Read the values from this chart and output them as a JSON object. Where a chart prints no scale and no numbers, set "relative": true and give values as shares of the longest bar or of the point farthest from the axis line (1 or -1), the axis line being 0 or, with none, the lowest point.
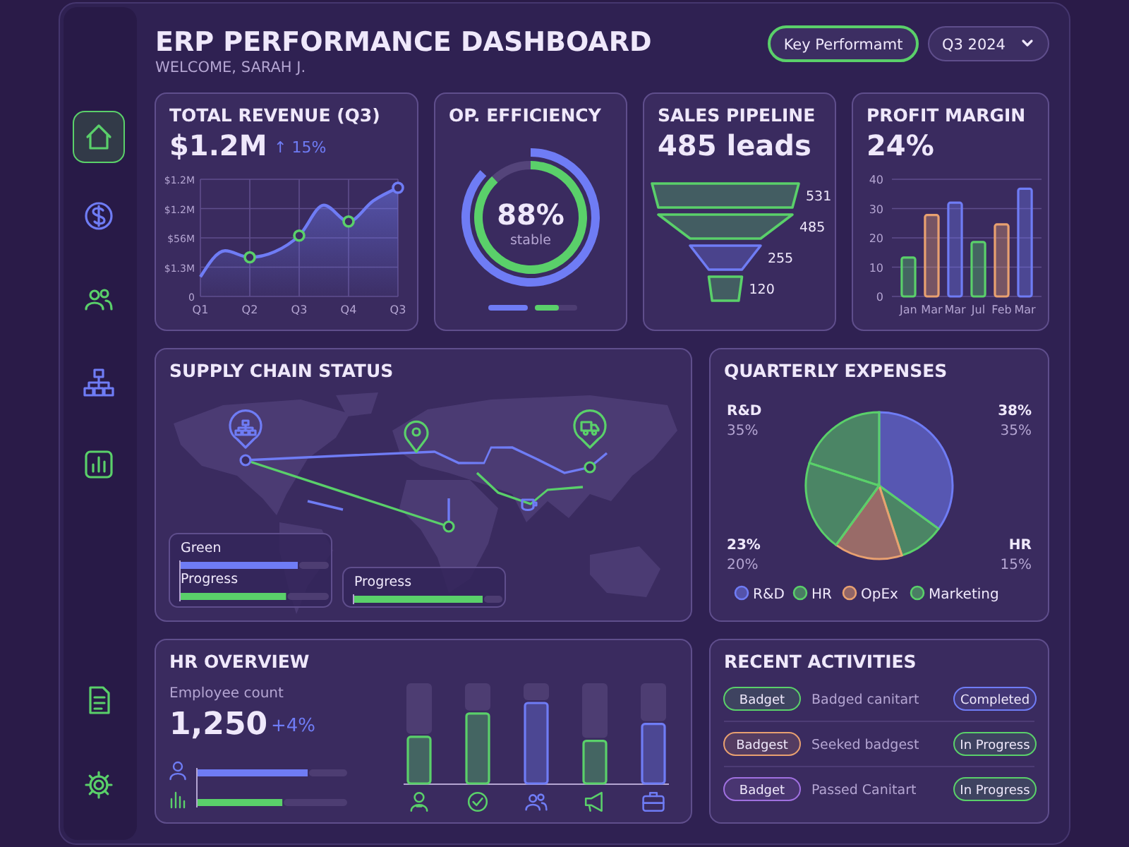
{
  "chart_data": [
    {
      "type": "other",
      "title": "ERP PERFORMANCE DASHBOARD",
      "subtitle": "WELCOME, SARAH J.",
      "annotations": [
        "Key Performamt",
        "Q3 2024"
      ]
    },
    {
      "type": "area",
      "relative": true,
      "title": "TOTAL REVENUE (Q3)",
      "subtitle": "$1.2M",
      "annotations": [
        "↑ 15%",
        "$1.2M",
        "$1.2M",
        "$56M",
        "$1.3M",
        "0"
      ],
      "categories": [
        "Q1",
        null,
        "Q2",
        null,
        "Q3",
        null,
        "Q4",
        null,
        "Q3"
      ],
      "grid": true,
      "series": [
        {
          "type": "area",
          "color": "#6f7cf5",
          "values": [
            0.18,
            0.42,
            0.36,
            0.41,
            0.56,
            0.84,
            0.69,
            0.88,
            1
          ]
        },
        {
          "type": "scatter",
          "marker": "circle",
          "values": [
            null,
            null,
            0.36,
            null,
            0.56,
            null,
            0.69,
            null,
            1
          ],
          "colors": [
            null,
            null,
            "#5ad06a",
            null,
            "#5ad06a",
            null,
            "#5ad06a",
            null,
            "#6f7cf5"
          ]
        }
      ]
    },
    {
      "type": "donut",
      "title": "OP. EFFICIENCY",
      "annotations": [
        "stable"
      ],
      "values": [
        88,
        12
      ],
      "colors": [
        "#5ad06a",
        "#54447a"
      ],
      "value_labels": [
        "88%",
        null
      ]
    },
    {
      "type": "other",
      "title": "SALES PIPELINE",
      "subtitle": "485 leads",
      "categories": [
        null,
        null,
        null,
        null
      ],
      "values": [
        531,
        485,
        255,
        120
      ],
      "colors": [
        "#5ad06a",
        "#5ad06a",
        "#6f7cf5",
        "#5ad06a"
      ],
      "data_labels": true
    },
    {
      "type": "bar",
      "title": "PROFIT MARGIN",
      "subtitle": "24%",
      "categories": [
        "Jan",
        "Mar",
        "Mar",
        "Jul",
        "Feb",
        "Mar"
      ],
      "values": [
        13.3,
        27.8,
        32,
        18.6,
        24.6,
        36.8
      ],
      "colors": [
        "#5ad06a",
        "#e8a070",
        "#6f7cf5",
        "#5ad06a",
        "#e8a070",
        "#6f7cf5"
      ],
      "ylim": [
        0,
        40
      ],
      "yticks": [
        0,
        10,
        20,
        30,
        40
      ],
      "grid": "y"
    },
    {
      "type": "other",
      "title": "SUPPLY CHAIN STATUS"
    },
    {
      "type": "bar",
      "orientation": "horizontal",
      "relative": true,
      "categories": [
        "Green",
        "Progress"
      ],
      "values": [
        1,
        0.9
      ],
      "colors": [
        "#6f7cf5",
        "#5ad06a"
      ]
    },
    {
      "type": "bar",
      "orientation": "horizontal",
      "relative": true,
      "categories": [
        "Progress"
      ],
      "values": [
        1
      ],
      "colors": [
        "#5ad06a"
      ]
    },
    {
      "type": "pie",
      "title": "QUARTERLY EXPENSES",
      "categories": [
        "R&D",
        "HR",
        "OpEx",
        "Marketing",
        null
      ],
      "values": [
        35,
        10,
        15,
        20,
        20
      ],
      "colors": [
        "#6f7cf5",
        "#5ad06a",
        "#e8a070",
        "#5ad06a",
        "#5ad06a"
      ],
      "legend": "bottom",
      "annotations": [
        "R&D",
        "35%",
        "38%",
        "35%",
        "23%",
        "20%",
        "HR",
        "15%"
      ]
    },
    {
      "type": "other",
      "title": "HR OVERVIEW",
      "annotations": [
        "Employee count",
        "1,250",
        "+4%"
      ]
    },
    {
      "type": "bar",
      "orientation": "horizontal",
      "relative": true,
      "categories": [
        null,
        null
      ],
      "values": [
        1,
        0.77
      ],
      "colors": [
        "#6f7cf5",
        "#5ad06a"
      ]
    },
    {
      "type": "bar",
      "relative": true,
      "categories": [
        null,
        null,
        null,
        null,
        null
      ],
      "values": [
        0.58,
        0.87,
        1,
        0.53,
        0.74
      ],
      "colors": [
        "#5ad06a",
        "#5ad06a",
        "#6f7cf5",
        "#5ad06a",
        "#6f7cf5"
      ]
    },
    {
      "type": "other",
      "title": "RECENT ACTIVITIES",
      "annotations": [
        "Badget",
        "Badged canitart",
        "Completed",
        "Badgest",
        "Seeked badgest",
        "In Progress",
        "Badget",
        "Passed Canitart",
        "In Progress"
      ]
    }
  ]
}
